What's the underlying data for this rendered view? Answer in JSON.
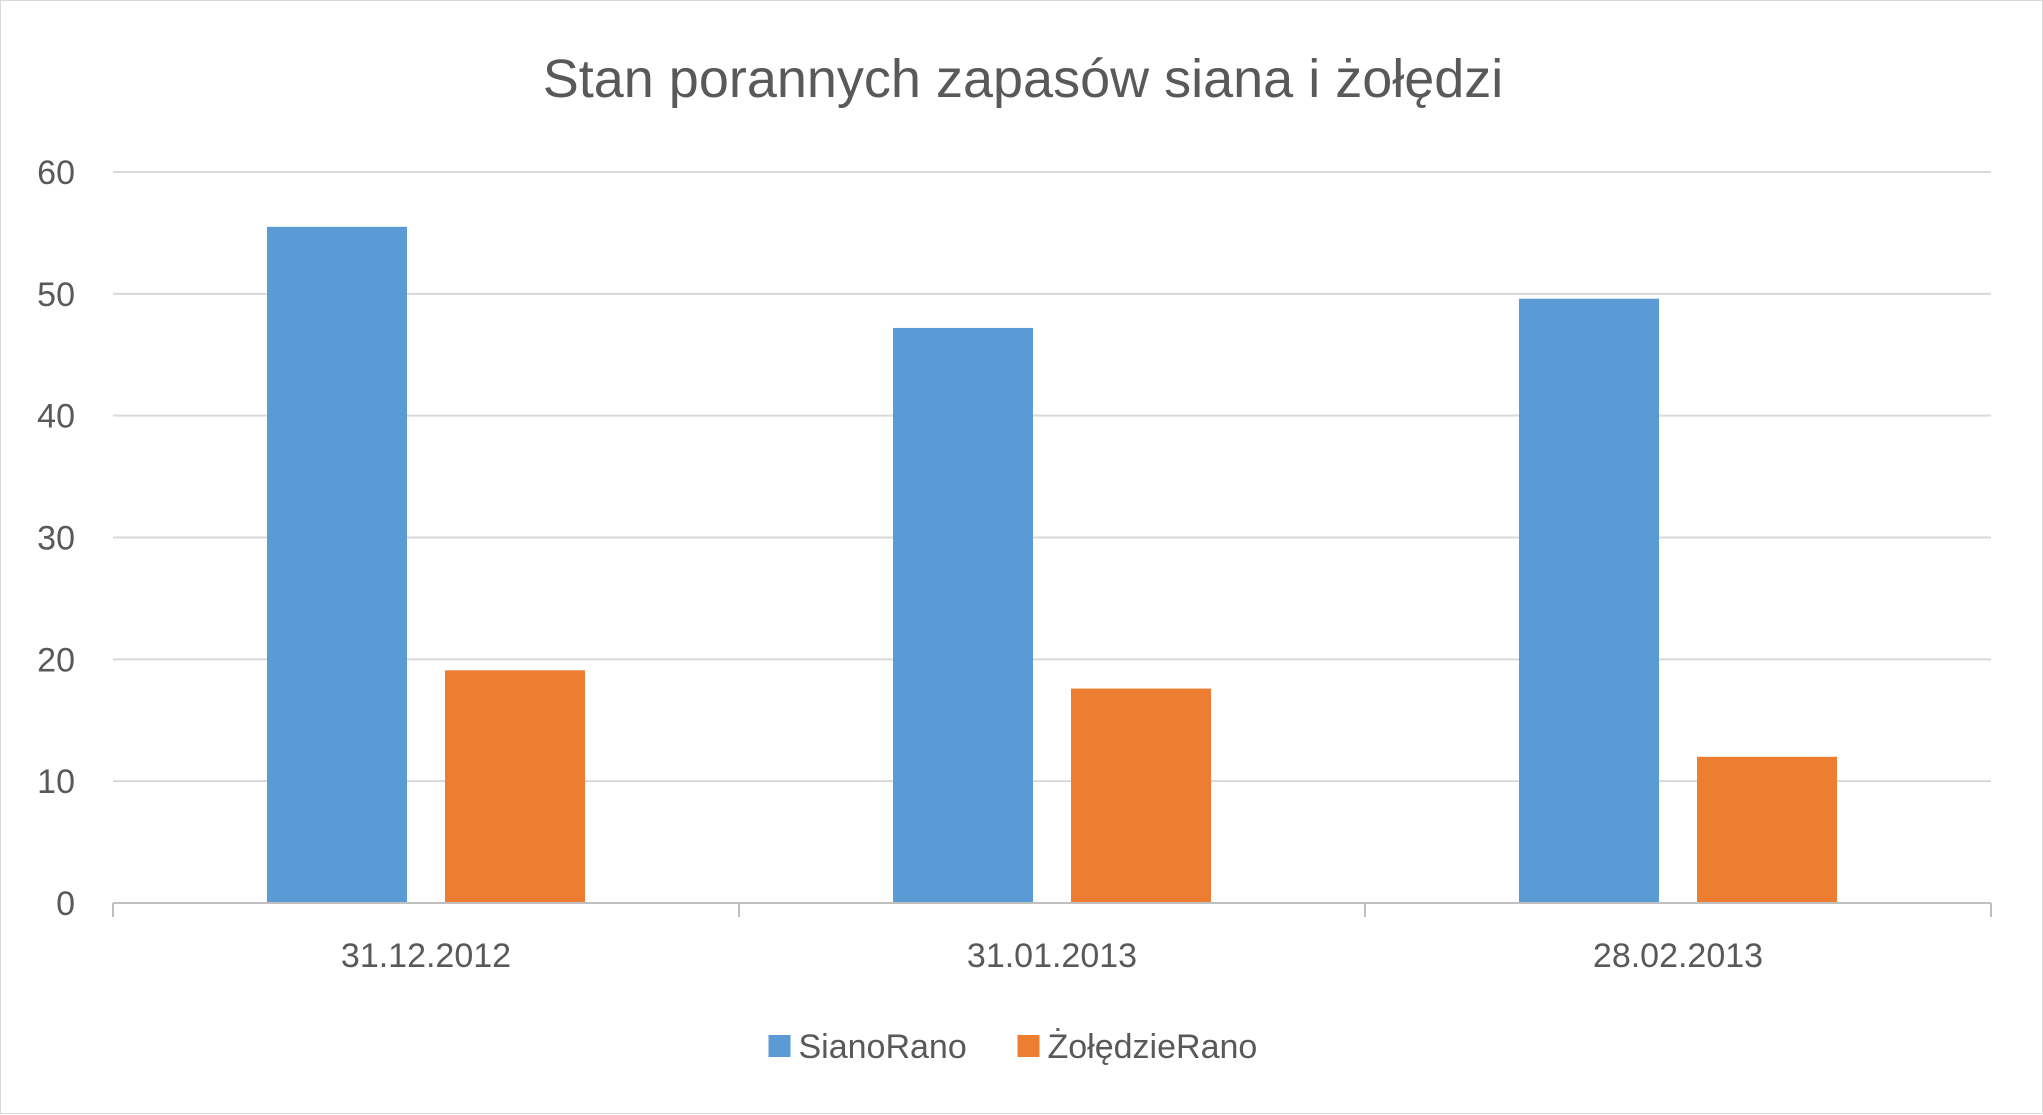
{
  "chart_data": {
    "type": "bar",
    "title": "Stan porannych zapasów siana i żołędzi",
    "xlabel": "",
    "ylabel": "",
    "categories": [
      "31.12.2012",
      "31.01.2013",
      "28.02.2013"
    ],
    "ylim": [
      0,
      60
    ],
    "yticks": [
      0,
      10,
      20,
      30,
      40,
      50,
      60
    ],
    "grid": true,
    "legend_position": "bottom",
    "series": [
      {
        "name": "SianoRano",
        "color": "#5b9bd5",
        "values": [
          55.5,
          47.2,
          49.6
        ]
      },
      {
        "name": "ŻołędzieRano",
        "color": "#ed7d31",
        "values": [
          19.1,
          17.6,
          12.0
        ]
      }
    ]
  }
}
